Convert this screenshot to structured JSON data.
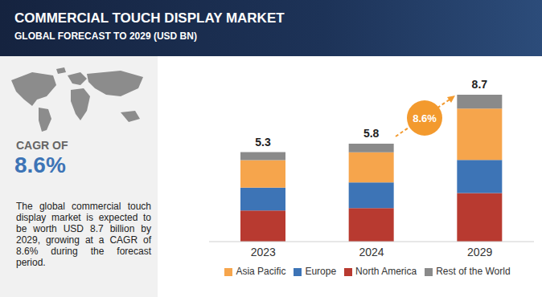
{
  "chart_data": {
    "type": "bar",
    "title": "COMMERCIAL TOUCH DISPLAY MARKET",
    "subtitle": "GLOBAL FORECAST TO 2029 (USD BN)",
    "categories": [
      "2023",
      "2024",
      "2029"
    ],
    "series": [
      {
        "name": "North America",
        "color": "#b83a30",
        "values": [
          1.84,
          1.99,
          2.88
        ]
      },
      {
        "name": "Europe",
        "color": "#3d74b6",
        "values": [
          1.36,
          1.52,
          1.96
        ]
      },
      {
        "name": "Asia Pacific",
        "color": "#f6a54c",
        "values": [
          1.63,
          1.78,
          3.04
        ]
      },
      {
        "name": "Rest of the World",
        "color": "#8a8a8a",
        "values": [
          0.47,
          0.51,
          0.82
        ]
      }
    ],
    "totals": [
      5.3,
      5.8,
      8.7
    ],
    "stacked": true,
    "legend": "bottom",
    "tick_labels": "x",
    "grid": false,
    "annotations": [
      {
        "text": "CAGR OF"
      },
      {
        "text": "8.6%"
      },
      {
        "text": "The global commercial touch display market is expected to be worth USD 8.7 billion by 2029, growing at a CAGR of 8.6% during the forecast period."
      },
      {
        "text": "8.6%"
      }
    ]
  }
}
